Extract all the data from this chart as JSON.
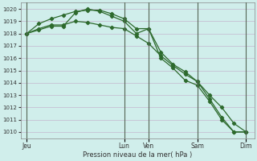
{
  "background_color": "#d0eeeb",
  "grid_color": "#c0a8c8",
  "line_color": "#2d6a2d",
  "xlabel": "Pression niveau de la mer( hPa )",
  "ylim": [
    1009.5,
    1020.5
  ],
  "yticks": [
    1010,
    1011,
    1012,
    1013,
    1014,
    1015,
    1016,
    1017,
    1018,
    1019,
    1020
  ],
  "day_labels": [
    "Jeu",
    "Lun",
    "Ven",
    "Sam",
    "Dim"
  ],
  "day_positions": [
    0,
    48,
    60,
    84,
    108
  ],
  "xlim": [
    -3,
    112
  ],
  "line1_x": [
    0,
    6,
    12,
    18,
    24,
    30,
    36,
    42,
    48,
    54,
    60,
    66,
    72,
    78,
    84,
    90,
    96,
    102,
    108
  ],
  "line1_y": [
    1018.0,
    1018.4,
    1018.7,
    1018.7,
    1019.0,
    1018.9,
    1018.7,
    1018.5,
    1018.4,
    1017.8,
    1017.2,
    1016.2,
    1015.4,
    1014.7,
    1014.1,
    1013.0,
    1012.0,
    1010.7,
    1010.0
  ],
  "line2_x": [
    0,
    6,
    12,
    18,
    24,
    30,
    36,
    42,
    48,
    54,
    60,
    66,
    72,
    78,
    84,
    90,
    96,
    102,
    108
  ],
  "line2_y": [
    1018.0,
    1018.8,
    1019.2,
    1019.5,
    1019.8,
    1019.9,
    1019.9,
    1019.6,
    1019.2,
    1018.4,
    1018.4,
    1016.5,
    1015.5,
    1014.9,
    1014.1,
    1012.7,
    1011.2,
    1010.0,
    1010.0
  ],
  "line3_x": [
    0,
    6,
    12,
    18,
    24,
    30,
    36,
    42,
    48,
    54,
    60,
    66,
    72,
    78,
    84,
    90,
    96,
    102,
    108
  ],
  "line3_y": [
    1018.0,
    1018.3,
    1018.6,
    1018.6,
    1019.7,
    1020.0,
    1019.8,
    1019.4,
    1019.0,
    1018.0,
    1018.4,
    1016.0,
    1015.2,
    1014.2,
    1013.8,
    1012.5,
    1011.0,
    1010.0,
    1010.0
  ],
  "vline_color": "#556655",
  "spine_color": "#888888"
}
